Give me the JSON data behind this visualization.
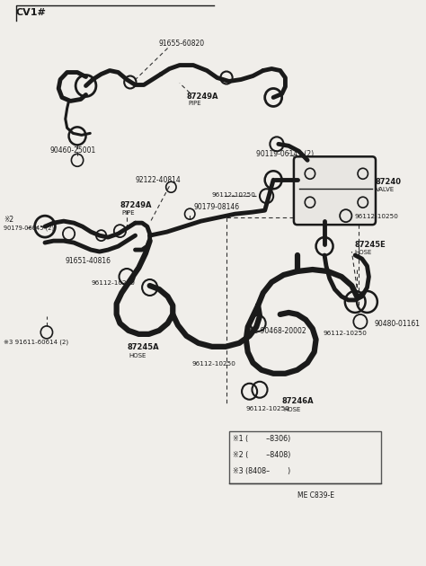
{
  "title": "CV1#",
  "bg_color": "#f0eeea",
  "line_color": "#1a1a1a",
  "fig_width": 4.74,
  "fig_height": 6.3,
  "dpi": 100,
  "legend_items": [
    "※1 (        –8306)",
    "※2 (        –8408)",
    "※3 (8408–        )"
  ],
  "ref_code": "ME C839-E"
}
